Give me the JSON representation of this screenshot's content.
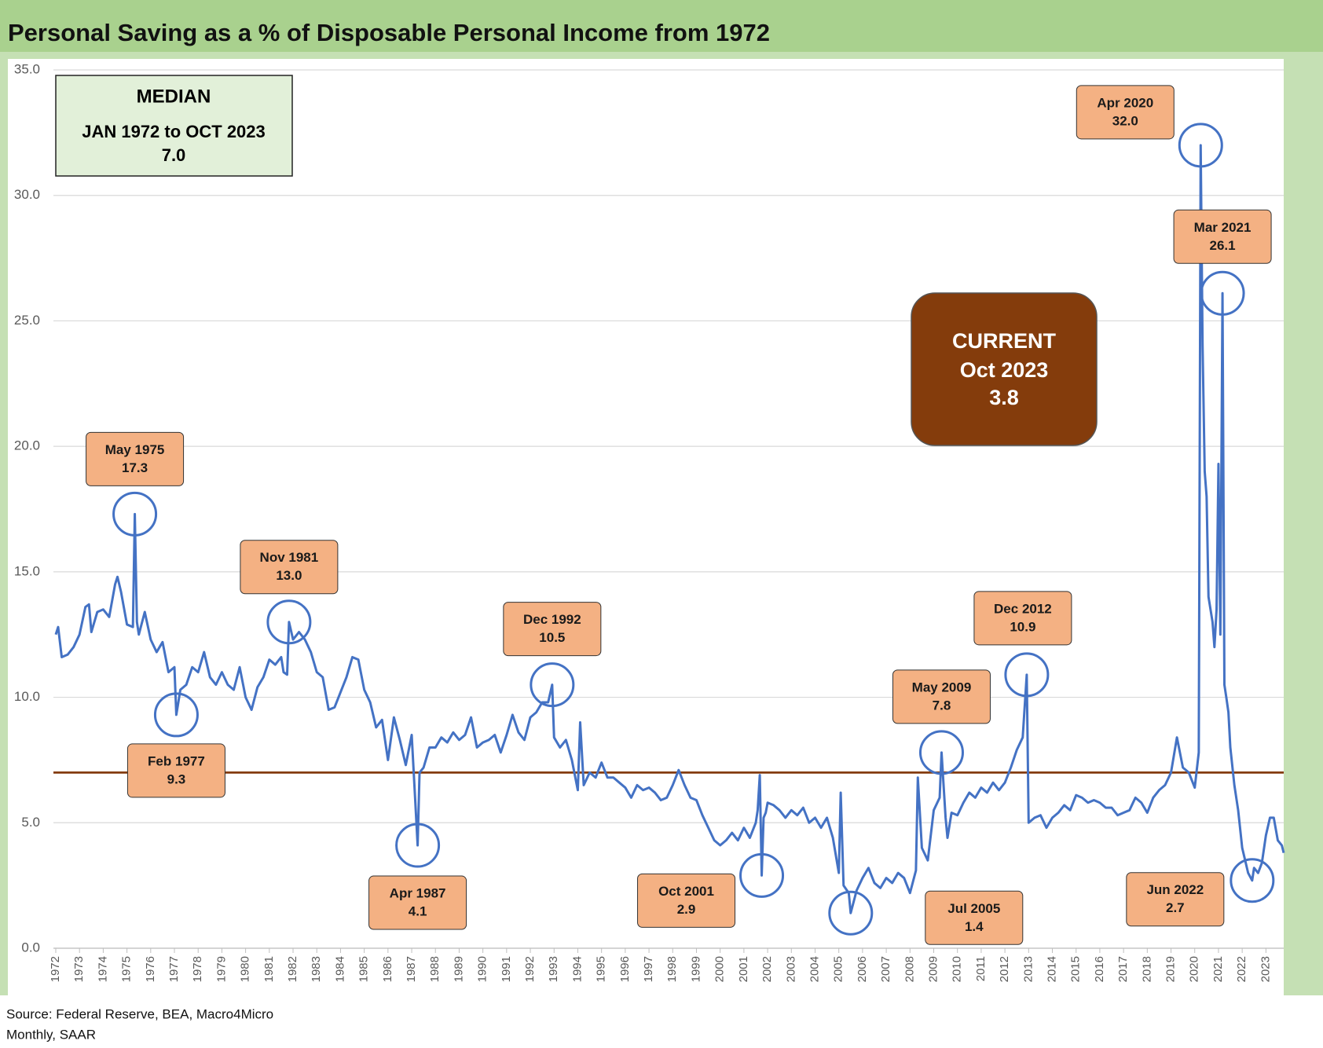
{
  "chart_data": {
    "type": "line",
    "title": "Personal Saving as a % of Disposable Personal Income from 1972",
    "source": "Source: Federal Reserve, BEA, Macro4Micro",
    "note": "Monthly, SAAR",
    "color": "#4472c4",
    "grid": true,
    "xlim": [
      1972,
      2023.75
    ],
    "ylim": [
      0,
      35
    ],
    "yticks": [
      {
        "value": 0,
        "label": "0.0"
      },
      {
        "value": 5,
        "label": "5.0"
      },
      {
        "value": 10,
        "label": "10.0"
      },
      {
        "value": 15,
        "label": "15.0"
      },
      {
        "value": 20,
        "label": "20.0"
      },
      {
        "value": 25,
        "label": "25.0"
      },
      {
        "value": 30,
        "label": "30.0"
      },
      {
        "value": 35,
        "label": "35.0"
      }
    ],
    "xticks": [
      1972,
      1973,
      1974,
      1975,
      1976,
      1977,
      1978,
      1979,
      1980,
      1981,
      1982,
      1983,
      1984,
      1985,
      1986,
      1987,
      1988,
      1989,
      1990,
      1991,
      1992,
      1993,
      1994,
      1995,
      1996,
      1997,
      1998,
      1999,
      2000,
      2001,
      2002,
      2003,
      2004,
      2005,
      2006,
      2007,
      2008,
      2009,
      2010,
      2011,
      2012,
      2013,
      2014,
      2015,
      2016,
      2017,
      2018,
      2019,
      2020,
      2021,
      2022,
      2023
    ],
    "x": [
      1972.0,
      1972.1,
      1972.25,
      1972.5,
      1972.75,
      1973.0,
      1973.25,
      1973.4,
      1973.5,
      1973.75,
      1974.0,
      1974.25,
      1974.5,
      1974.6,
      1974.75,
      1975.0,
      1975.25,
      1975.33,
      1975.42,
      1975.5,
      1975.75,
      1976.0,
      1976.25,
      1976.5,
      1976.75,
      1977.0,
      1977.08,
      1977.25,
      1977.5,
      1977.75,
      1978.0,
      1978.25,
      1978.5,
      1978.75,
      1979.0,
      1979.25,
      1979.5,
      1979.75,
      1980.0,
      1980.25,
      1980.5,
      1980.75,
      1981.0,
      1981.25,
      1981.5,
      1981.6,
      1981.75,
      1981.83,
      1982.0,
      1982.25,
      1982.5,
      1982.75,
      1983.0,
      1983.25,
      1983.5,
      1983.75,
      1984.0,
      1984.25,
      1984.5,
      1984.75,
      1985.0,
      1985.25,
      1985.5,
      1985.75,
      1986.0,
      1986.25,
      1986.5,
      1986.75,
      1987.0,
      1987.25,
      1987.33,
      1987.5,
      1987.75,
      1988.0,
      1988.25,
      1988.5,
      1988.75,
      1989.0,
      1989.25,
      1989.5,
      1989.75,
      1990.0,
      1990.25,
      1990.5,
      1990.75,
      1991.0,
      1991.25,
      1991.5,
      1991.75,
      1992.0,
      1992.25,
      1992.5,
      1992.75,
      1992.92,
      1993.0,
      1993.25,
      1993.5,
      1993.75,
      1994.0,
      1994.1,
      1994.25,
      1994.5,
      1994.75,
      1995.0,
      1995.25,
      1995.5,
      1995.75,
      1996.0,
      1996.25,
      1996.5,
      1996.75,
      1997.0,
      1997.25,
      1997.5,
      1997.75,
      1998.0,
      1998.25,
      1998.5,
      1998.75,
      1999.0,
      1999.25,
      1999.5,
      1999.75,
      2000.0,
      2000.25,
      2000.5,
      2000.75,
      2001.0,
      2001.25,
      2001.5,
      2001.58,
      2001.67,
      2001.75,
      2001.83,
      2001.92,
      2002.0,
      2002.25,
      2002.5,
      2002.75,
      2003.0,
      2003.25,
      2003.5,
      2003.75,
      2004.0,
      2004.25,
      2004.5,
      2004.75,
      2005.0,
      2005.08,
      2005.2,
      2005.42,
      2005.5,
      2005.75,
      2006.0,
      2006.25,
      2006.5,
      2006.75,
      2007.0,
      2007.25,
      2007.5,
      2007.75,
      2008.0,
      2008.25,
      2008.33,
      2008.5,
      2008.75,
      2009.0,
      2009.25,
      2009.33,
      2009.5,
      2009.58,
      2009.75,
      2010.0,
      2010.25,
      2010.5,
      2010.75,
      2011.0,
      2011.25,
      2011.5,
      2011.75,
      2012.0,
      2012.25,
      2012.5,
      2012.75,
      2012.92,
      2013.0,
      2013.25,
      2013.5,
      2013.75,
      2014.0,
      2014.25,
      2014.5,
      2014.75,
      2015.0,
      2015.25,
      2015.5,
      2015.75,
      2016.0,
      2016.25,
      2016.5,
      2016.75,
      2017.0,
      2017.25,
      2017.5,
      2017.75,
      2018.0,
      2018.25,
      2018.5,
      2018.75,
      2019.0,
      2019.25,
      2019.5,
      2019.75,
      2020.0,
      2020.17,
      2020.25,
      2020.33,
      2020.42,
      2020.5,
      2020.58,
      2020.75,
      2020.83,
      2020.92,
      2021.0,
      2021.08,
      2021.17,
      2021.25,
      2021.33,
      2021.42,
      2021.5,
      2021.67,
      2021.83,
      2022.0,
      2022.25,
      2022.42,
      2022.5,
      2022.67,
      2022.83,
      2023.0,
      2023.17,
      2023.33,
      2023.5,
      2023.67,
      2023.75
    ],
    "values": [
      12.5,
      12.8,
      11.6,
      11.7,
      12.0,
      12.5,
      13.6,
      13.7,
      12.6,
      13.4,
      13.5,
      13.2,
      14.5,
      14.8,
      14.2,
      12.9,
      12.8,
      17.3,
      13.0,
      12.5,
      13.4,
      12.3,
      11.8,
      12.2,
      11.0,
      11.2,
      9.3,
      10.3,
      10.5,
      11.2,
      11.0,
      11.8,
      10.8,
      10.5,
      11.0,
      10.5,
      10.3,
      11.2,
      10.0,
      9.5,
      10.4,
      10.8,
      11.5,
      11.3,
      11.6,
      11.0,
      10.9,
      13.0,
      12.3,
      12.6,
      12.3,
      11.8,
      11.0,
      10.8,
      9.5,
      9.6,
      10.2,
      10.8,
      11.6,
      11.5,
      10.3,
      9.8,
      8.8,
      9.1,
      7.5,
      9.2,
      8.3,
      7.3,
      8.5,
      4.1,
      7.0,
      7.2,
      8.0,
      8.0,
      8.4,
      8.2,
      8.6,
      8.3,
      8.5,
      9.2,
      8.0,
      8.2,
      8.3,
      8.5,
      7.8,
      8.5,
      9.3,
      8.6,
      8.3,
      9.2,
      9.4,
      9.8,
      9.8,
      10.5,
      8.4,
      8.0,
      8.3,
      7.5,
      6.3,
      9.0,
      6.5,
      7.0,
      6.8,
      7.4,
      6.8,
      6.8,
      6.6,
      6.4,
      6.0,
      6.5,
      6.3,
      6.4,
      6.2,
      5.9,
      6.0,
      6.5,
      7.1,
      6.5,
      6.0,
      5.9,
      5.3,
      4.8,
      4.3,
      4.1,
      4.3,
      4.6,
      4.3,
      4.8,
      4.4,
      5.0,
      5.5,
      6.9,
      2.9,
      5.2,
      5.4,
      5.8,
      5.7,
      5.5,
      5.2,
      5.5,
      5.3,
      5.6,
      5.0,
      5.2,
      4.8,
      5.2,
      4.4,
      3.0,
      6.2,
      2.5,
      2.2,
      1.4,
      2.3,
      2.8,
      3.2,
      2.6,
      2.4,
      2.8,
      2.6,
      3.0,
      2.8,
      2.2,
      3.1,
      6.8,
      4.0,
      3.5,
      5.5,
      6.0,
      7.8,
      5.2,
      4.4,
      5.4,
      5.3,
      5.8,
      6.2,
      6.0,
      6.4,
      6.2,
      6.6,
      6.3,
      6.6,
      7.2,
      7.9,
      8.4,
      10.9,
      5.0,
      5.2,
      5.3,
      4.8,
      5.2,
      5.4,
      5.7,
      5.5,
      6.1,
      6.0,
      5.8,
      5.9,
      5.8,
      5.6,
      5.6,
      5.3,
      5.4,
      5.5,
      6.0,
      5.8,
      5.4,
      6.0,
      6.3,
      6.5,
      7.0,
      8.4,
      7.2,
      7.0,
      6.4,
      7.8,
      32.0,
      24.0,
      19.0,
      18.0,
      14.0,
      13.0,
      12.0,
      13.5,
      19.3,
      12.5,
      26.1,
      10.5,
      10.0,
      9.4,
      8.0,
      6.5,
      5.5,
      4.0,
      3.0,
      2.7,
      3.2,
      3.0,
      3.4,
      4.5,
      5.2,
      5.2,
      4.3,
      4.1,
      3.8
    ],
    "median": {
      "title": "MEDIAN",
      "period": "JAN 1972 to OCT 2023",
      "value": 7,
      "value_label": "7.0"
    },
    "current": {
      "title": "CURRENT",
      "period": "Oct 2023",
      "value": 3.8
    },
    "annotations": [
      {
        "label": "May 1975",
        "x": 1975.33,
        "value": 17.3
      },
      {
        "label": "Feb 1977",
        "x": 1977.08,
        "value": 9.3
      },
      {
        "label": "Nov 1981",
        "x": 1981.83,
        "value": 13,
        "value_label": "13.0"
      },
      {
        "label": "Apr 1987",
        "x": 1987.25,
        "value": 4.1
      },
      {
        "label": "Dec 1992",
        "x": 1992.92,
        "value": 10.5
      },
      {
        "label": "Oct 2001",
        "x": 2001.75,
        "value": 2.9
      },
      {
        "label": "Jul 2005",
        "x": 2005.5,
        "value": 1.4
      },
      {
        "label": "May 2009",
        "x": 2009.33,
        "value": 7.8
      },
      {
        "label": "Dec 2012",
        "x": 2012.92,
        "value": 10.9
      },
      {
        "label": "Apr 2020",
        "x": 2020.25,
        "value": 32,
        "value_label": "32.0"
      },
      {
        "label": "Mar 2021",
        "x": 2021.17,
        "value": 26.1
      },
      {
        "label": "Jun 2022",
        "x": 2022.42,
        "value": 2.7
      }
    ]
  }
}
